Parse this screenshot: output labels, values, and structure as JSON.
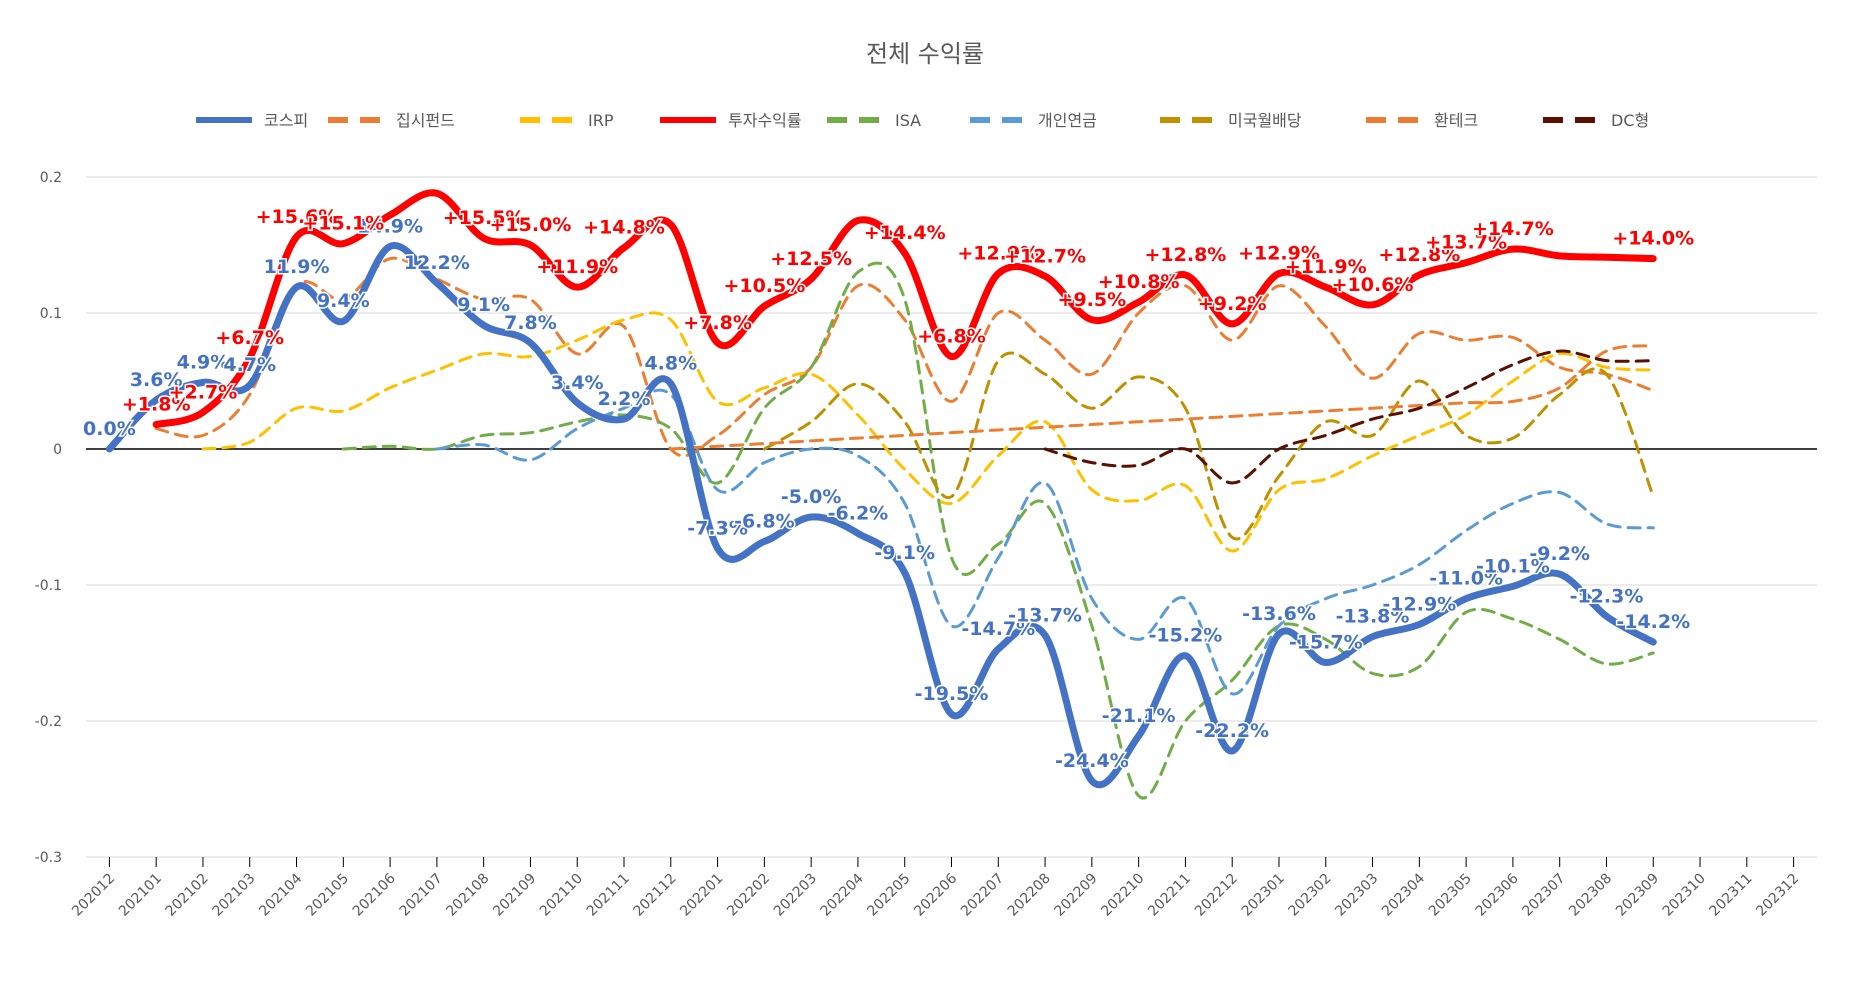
{
  "chart_data": {
    "type": "line",
    "title": "전체 수익률",
    "categories": [
      "202012",
      "202101",
      "202102",
      "202103",
      "202104",
      "202105",
      "202106",
      "202107",
      "202108",
      "202109",
      "202110",
      "202111",
      "202112",
      "202201",
      "202202",
      "202203",
      "202204",
      "202205",
      "202206",
      "202207",
      "202208",
      "202209",
      "202210",
      "202211",
      "202212",
      "202301",
      "202302",
      "202303",
      "202304",
      "202305",
      "202306",
      "202307",
      "202308",
      "202309",
      "202310",
      "202311",
      "202312"
    ],
    "ylim": [
      -0.3,
      0.2
    ],
    "yticks": [
      0.2,
      0.1,
      0,
      -0.1,
      -0.2,
      -0.3
    ],
    "grid": true,
    "legend": "top",
    "series": [
      {
        "name": "코스피",
        "color": "#4472c4",
        "line_style": "solid",
        "values": [
          0,
          0.036,
          0.049,
          0.047,
          0.119,
          0.094,
          0.149,
          0.122,
          0.091,
          0.078,
          0.034,
          0.022,
          0.048,
          -0.073,
          -0.068,
          -0.05,
          -0.062,
          -0.091,
          -0.195,
          -0.147,
          -0.137,
          -0.244,
          -0.211,
          -0.152,
          -0.222,
          -0.136,
          -0.157,
          -0.138,
          -0.129,
          -0.11,
          -0.101,
          -0.092,
          -0.123,
          -0.142,
          null,
          null,
          null
        ],
        "value_labels": [
          "0.0%",
          "3.6%",
          "4.9%",
          "4.7%",
          "11.9%",
          "9.4%",
          "14.9%",
          "12.2%",
          "9.1%",
          "7.8%",
          "3.4%",
          "2.2%",
          "4.8%",
          "-7.3%",
          "-6.8%",
          "-5.0%",
          "-6.2%",
          "-9.1%",
          "-19.5%",
          "-14.7%",
          "-13.7%",
          "-24.4%",
          "-21.1%",
          "-15.2%",
          "-22.2%",
          "-13.6%",
          "-15.7%",
          "-13.8%",
          "-12.9%",
          "-11.0%",
          "-10.1%",
          "-9.2%",
          "-12.3%",
          "-14.2%",
          null,
          null,
          null
        ]
      },
      {
        "name": "집시펀드",
        "color": "#ed7d31",
        "line_style": "dashed",
        "values": [
          null,
          0.015,
          0.01,
          0.04,
          0.12,
          0.11,
          0.14,
          0.125,
          0.11,
          0.11,
          0.07,
          0.09,
          0.0,
          0.01,
          0.04,
          0.06,
          0.12,
          0.095,
          0.035,
          0.1,
          0.08,
          0.055,
          0.1,
          0.12,
          0.08,
          0.12,
          0.09,
          0.052,
          0.085,
          0.08,
          0.082,
          0.06,
          0.055,
          0.043,
          null,
          null,
          null
        ]
      },
      {
        "name": "IRP",
        "color": "#ffc000",
        "line_style": "dashed",
        "values": [
          null,
          null,
          0.0,
          0.005,
          0.03,
          0.028,
          0.045,
          0.058,
          0.07,
          0.068,
          0.08,
          0.095,
          0.095,
          0.035,
          0.045,
          0.055,
          0.025,
          -0.015,
          -0.04,
          -0.005,
          0.02,
          -0.03,
          -0.038,
          -0.027,
          -0.075,
          -0.03,
          -0.022,
          -0.005,
          0.01,
          0.025,
          0.05,
          0.07,
          0.06,
          0.058,
          null,
          null,
          null
        ]
      },
      {
        "name": "투자수익률",
        "color": "#ff0000",
        "line_style": "solid",
        "values": [
          null,
          0.018,
          0.027,
          0.067,
          0.156,
          0.151,
          0.172,
          0.188,
          0.155,
          0.15,
          0.119,
          0.148,
          0.165,
          0.078,
          0.105,
          0.125,
          0.168,
          0.144,
          0.068,
          0.129,
          0.127,
          0.095,
          0.108,
          0.128,
          0.092,
          0.129,
          0.119,
          0.106,
          0.128,
          0.137,
          0.147,
          0.142,
          0.141,
          0.14,
          null,
          null,
          null
        ],
        "value_labels": [
          null,
          "+1.8%",
          "+2.7%",
          "+6.7%",
          "+15.6%",
          "+15.1%",
          null,
          null,
          "+15.5%",
          "+15.0%",
          "+11.9%",
          "+14.8%",
          null,
          "+7.8%",
          "+10.5%",
          "+12.5%",
          null,
          "+14.4%",
          "+6.8%",
          "+12.9%",
          "+12.7%",
          "+9.5%",
          "+10.8%",
          "+12.8%",
          "+9.2%",
          "+12.9%",
          "+11.9%",
          "+10.6%",
          "+12.8%",
          "+13.7%",
          "+14.7%",
          null,
          null,
          "+14.0%",
          null,
          null,
          null
        ]
      },
      {
        "name": "ISA",
        "color": "#70ad47",
        "line_style": "dashed",
        "values": [
          null,
          null,
          null,
          null,
          null,
          0.0,
          0.002,
          0.0,
          0.01,
          0.012,
          0.02,
          0.025,
          0.015,
          -0.025,
          0.03,
          0.06,
          0.13,
          0.11,
          -0.08,
          -0.07,
          -0.04,
          -0.13,
          -0.255,
          -0.2,
          -0.17,
          -0.13,
          -0.14,
          -0.165,
          -0.16,
          -0.12,
          -0.125,
          -0.14,
          -0.158,
          -0.15,
          null,
          null,
          null
        ]
      },
      {
        "name": "개인연금",
        "color": "#5b9bd5",
        "line_style": "dashed",
        "values": [
          null,
          null,
          null,
          null,
          null,
          null,
          null,
          0.0,
          0.003,
          -0.008,
          0.015,
          0.03,
          0.04,
          -0.03,
          -0.01,
          0.0,
          -0.005,
          -0.04,
          -0.13,
          -0.08,
          -0.025,
          -0.11,
          -0.14,
          -0.11,
          -0.18,
          -0.13,
          -0.11,
          -0.1,
          -0.085,
          -0.06,
          -0.04,
          -0.032,
          -0.055,
          -0.058,
          null,
          null,
          null
        ]
      },
      {
        "name": "미국월배당",
        "color": "#bf9000",
        "line_style": "dashed",
        "values": [
          null,
          null,
          null,
          null,
          null,
          null,
          null,
          null,
          null,
          null,
          null,
          null,
          null,
          null,
          0.0,
          0.02,
          0.048,
          0.02,
          -0.035,
          0.065,
          0.055,
          0.03,
          0.053,
          0.03,
          -0.065,
          -0.02,
          0.02,
          0.01,
          0.05,
          0.01,
          0.008,
          0.04,
          0.055,
          -0.035,
          null,
          null,
          null
        ]
      },
      {
        "name": "환테크",
        "color": "#ed7d31",
        "line_style": "dashed",
        "values": [
          null,
          null,
          null,
          null,
          null,
          null,
          null,
          null,
          null,
          null,
          null,
          null,
          0.0,
          0.002,
          0.004,
          0.006,
          0.008,
          0.01,
          0.012,
          0.014,
          0.016,
          0.018,
          0.02,
          0.022,
          0.024,
          0.026,
          0.028,
          0.03,
          0.032,
          0.034,
          0.035,
          0.045,
          0.072,
          0.076,
          null,
          null,
          null
        ]
      },
      {
        "name": "DC형",
        "color": "#5b0f00",
        "line_style": "dashed",
        "values": [
          null,
          null,
          null,
          null,
          null,
          null,
          null,
          null,
          null,
          null,
          null,
          null,
          null,
          null,
          null,
          null,
          null,
          null,
          null,
          null,
          0.0,
          -0.01,
          -0.012,
          0.0,
          -0.025,
          0.0,
          0.01,
          0.022,
          0.03,
          0.045,
          0.062,
          0.072,
          0.065,
          0.065,
          null,
          null,
          null
        ]
      }
    ]
  }
}
